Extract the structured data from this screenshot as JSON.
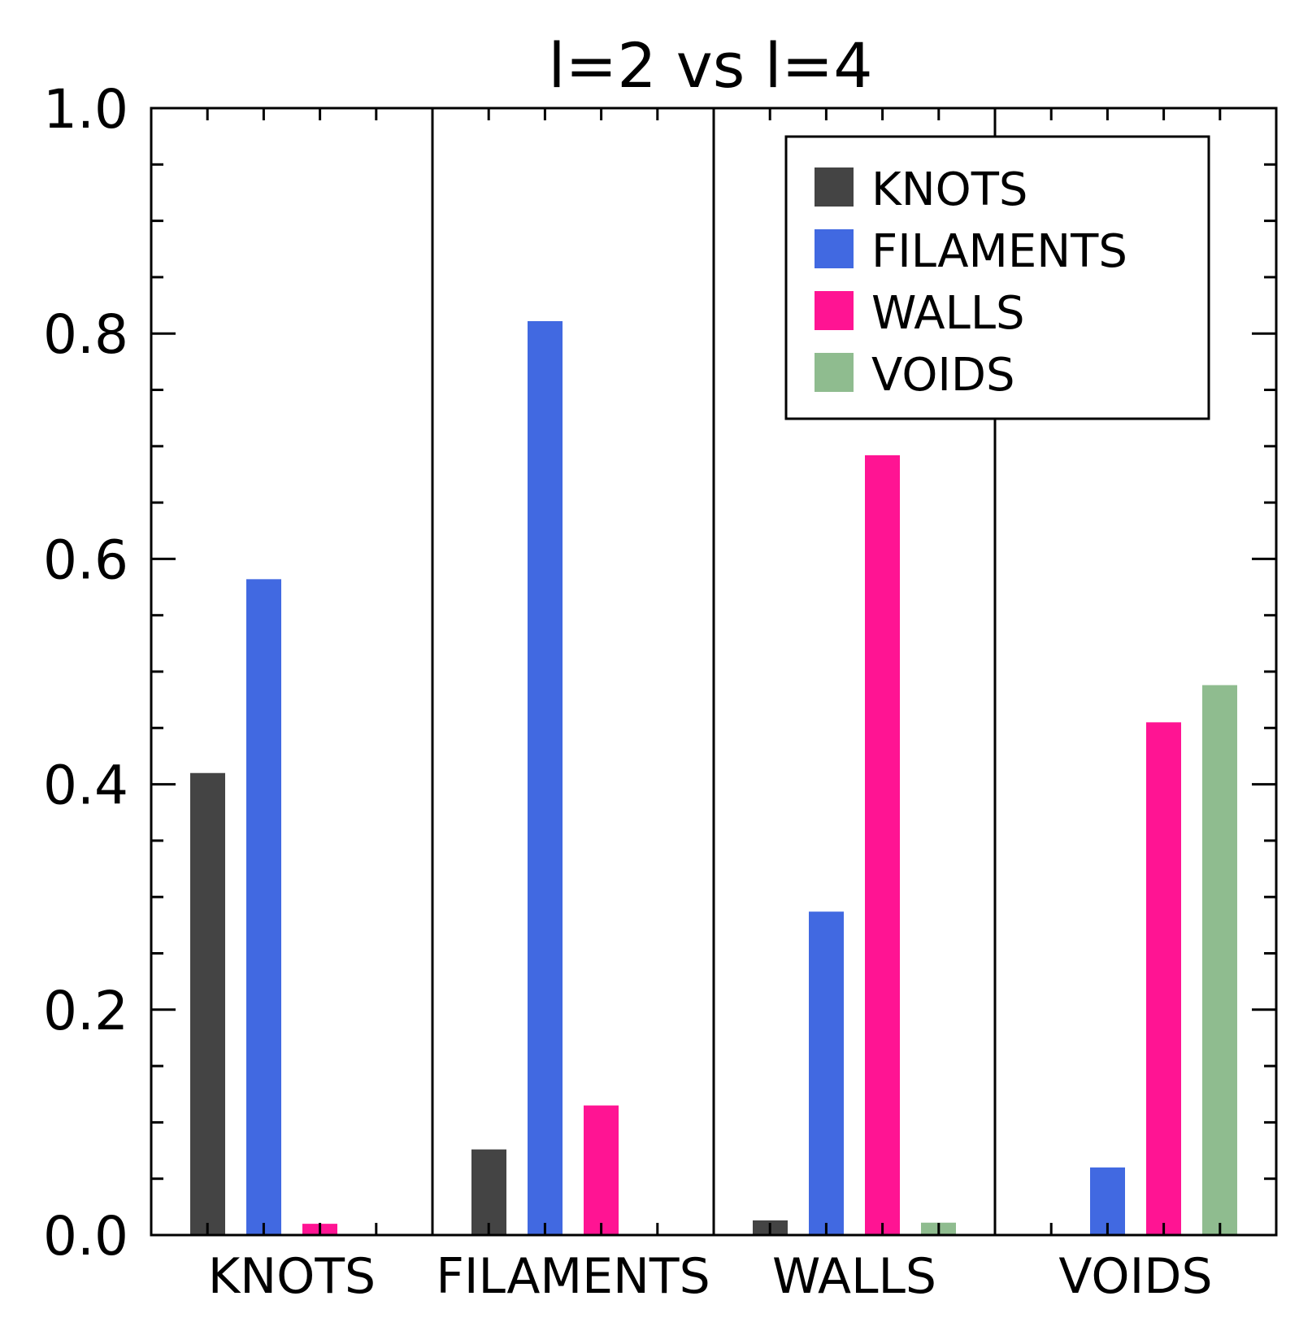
{
  "chart_data": {
    "type": "bar",
    "title": "l=2 vs l=4",
    "xlabel": "",
    "ylabel": "",
    "categories": [
      "KNOTS",
      "FILAMENTS",
      "WALLS",
      "VOIDS"
    ],
    "series": [
      {
        "name": "KNOTS",
        "color": "#444444",
        "values": [
          0.41,
          0.076,
          0.013,
          0.0
        ]
      },
      {
        "name": "FILAMENTS",
        "color": "#4169E1",
        "values": [
          0.582,
          0.811,
          0.287,
          0.06
        ]
      },
      {
        "name": "WALLS",
        "color": "#FF1493",
        "values": [
          0.01,
          0.115,
          0.692,
          0.455
        ]
      },
      {
        "name": "VOIDS",
        "color": "#8FBC8F",
        "values": [
          0.0,
          0.0,
          0.011,
          0.488
        ]
      }
    ],
    "ylim": [
      0.0,
      1.0
    ],
    "yticks": [
      "0.0",
      "0.2",
      "0.4",
      "0.6",
      "0.8",
      "1.0"
    ],
    "ytick_values": [
      0.0,
      0.2,
      0.4,
      0.6,
      0.8,
      1.0
    ],
    "minor_tick_step": 0.05,
    "grid": false,
    "legend_placement": "top-right",
    "category_separators": true
  }
}
